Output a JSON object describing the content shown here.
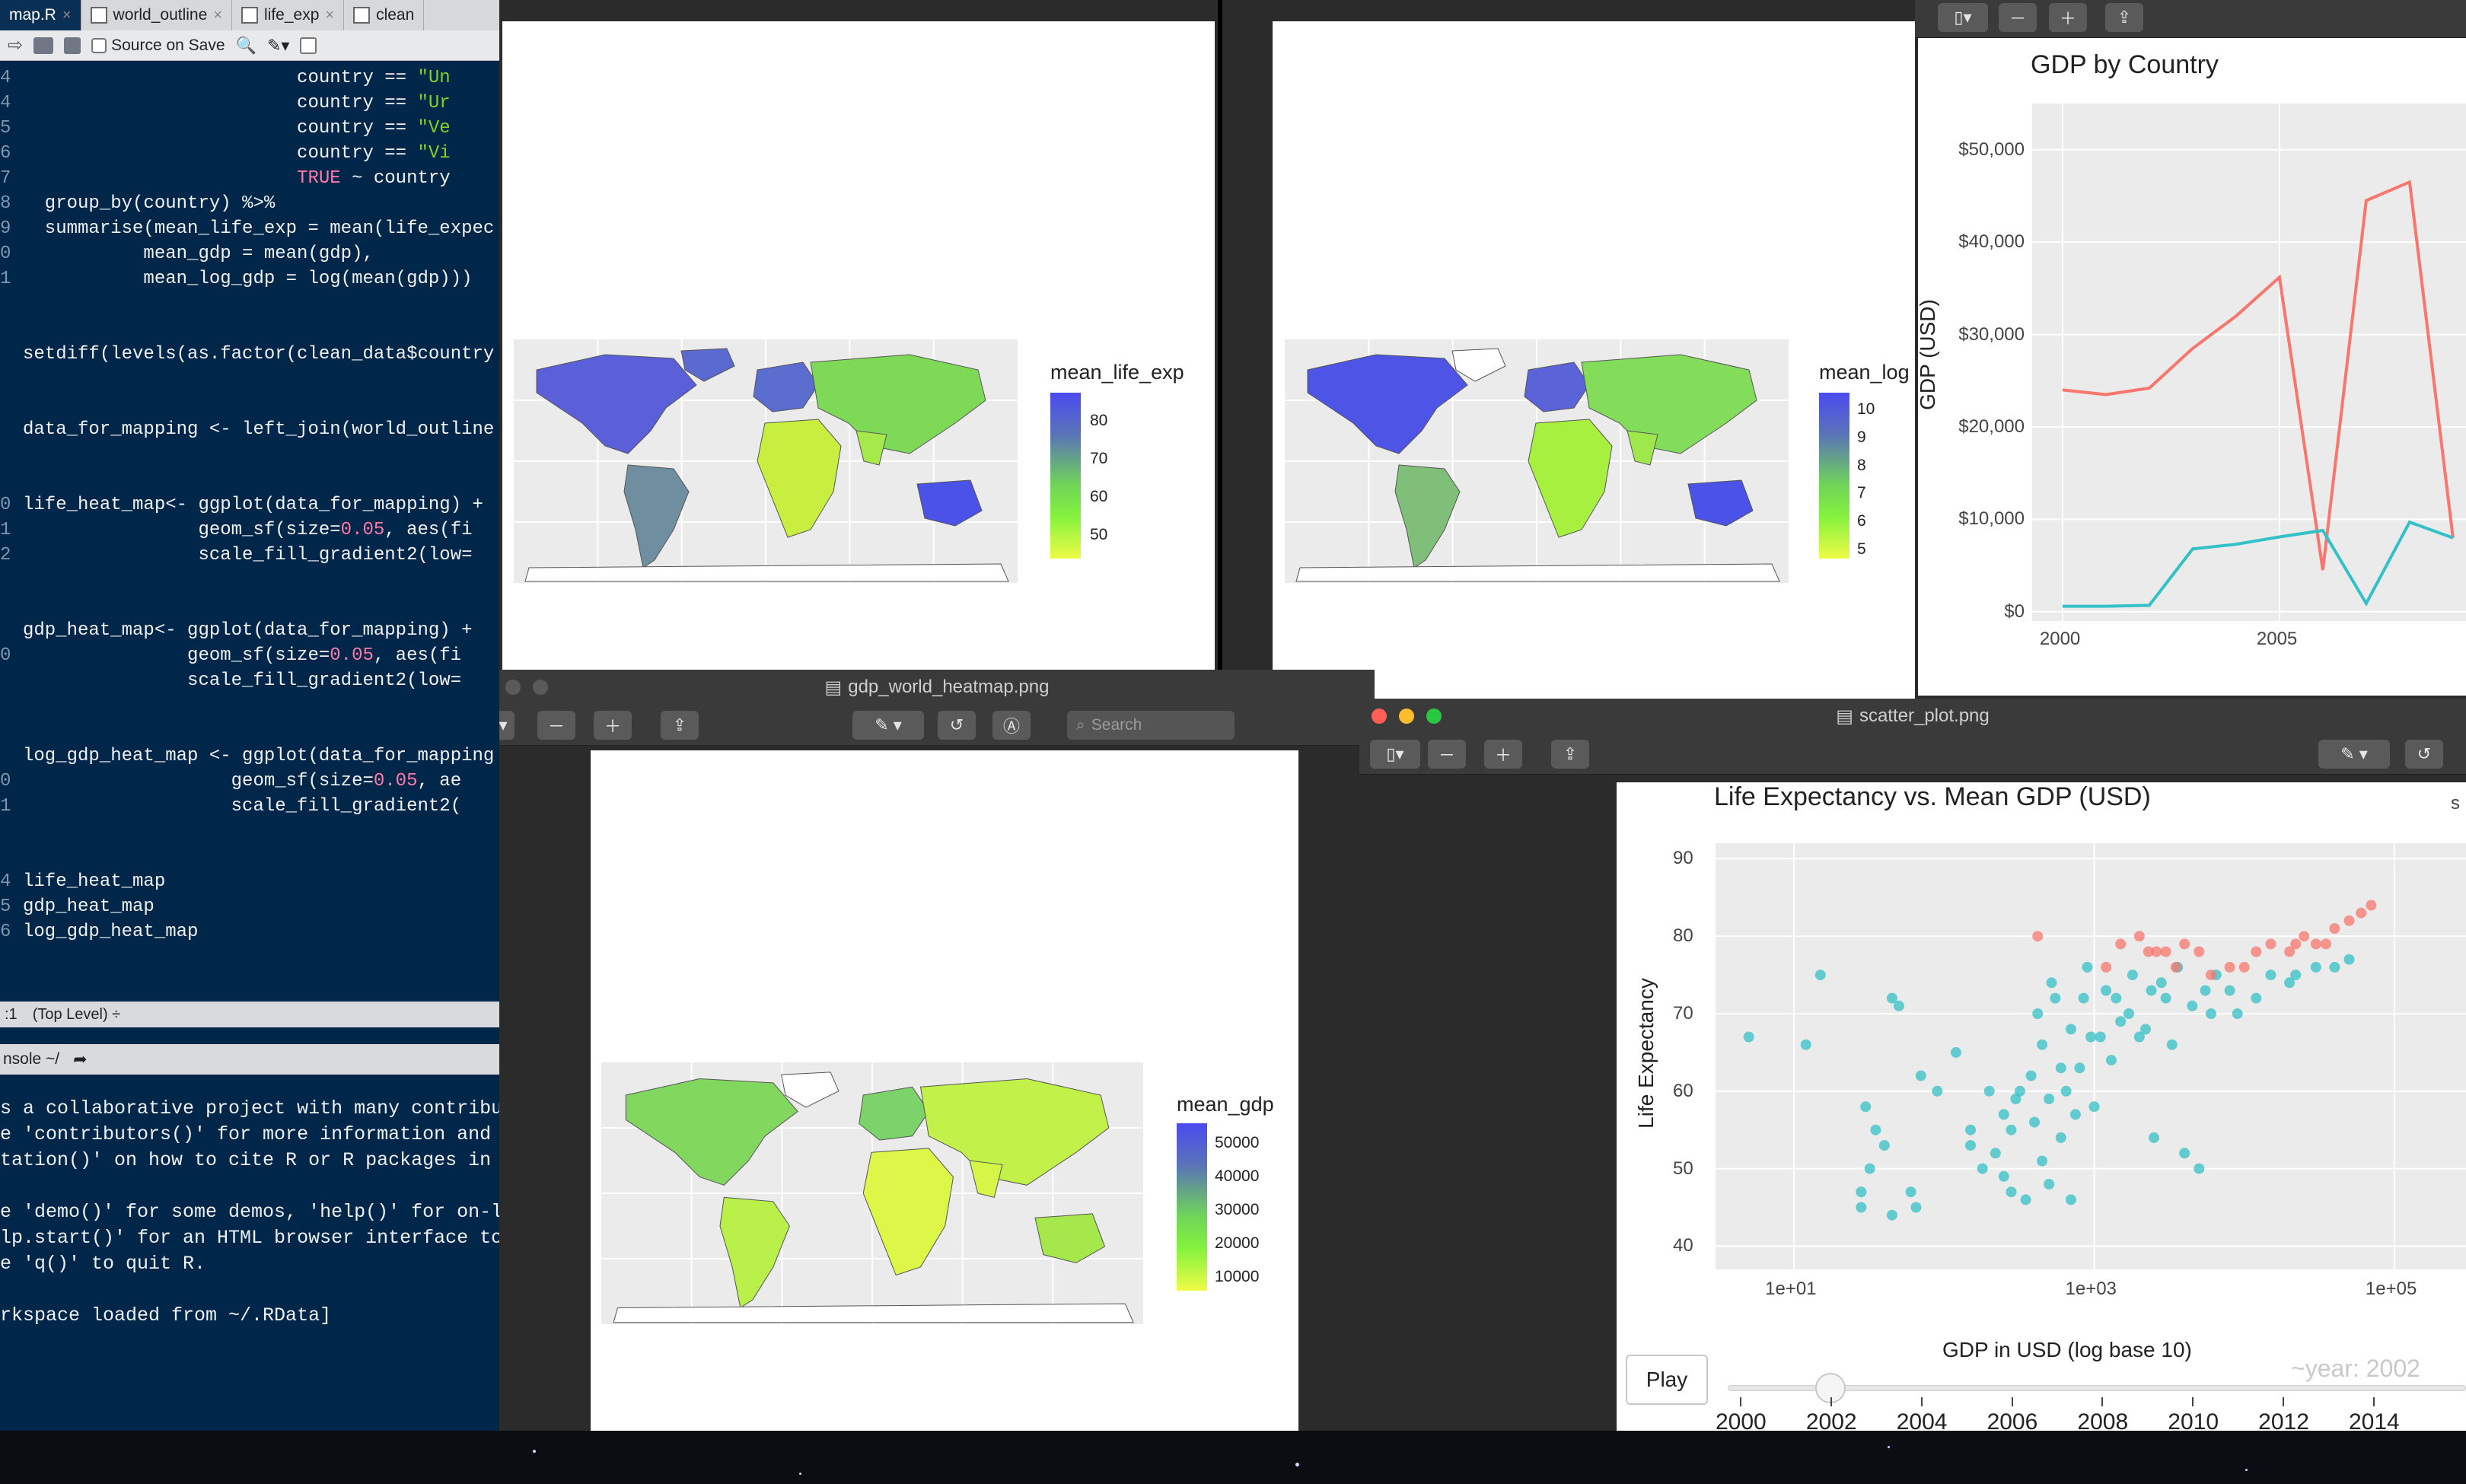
{
  "rstudio": {
    "tabs": [
      {
        "label": "map.R"
      },
      {
        "label": "world_outline"
      },
      {
        "label": "life_exp"
      },
      {
        "label": "clean"
      }
    ],
    "source_on_save": "Source on Save",
    "code_lines": [
      {
        "no": "4",
        "text": "                         country == \"Un"
      },
      {
        "no": "4",
        "text": "                         country == \"Ur"
      },
      {
        "no": "5",
        "text": "                         country == \"Ve"
      },
      {
        "no": "6",
        "text": "                         country == \"Vi"
      },
      {
        "no": "7",
        "text": "                         TRUE ~ country"
      },
      {
        "no": "8",
        "text": "  group_by(country) %>%"
      },
      {
        "no": "9",
        "text": "  summarise(mean_life_exp = mean(life_expec"
      },
      {
        "no": "0",
        "text": "           mean_gdp = mean(gdp),"
      },
      {
        "no": "1",
        "text": "           mean_log_gdp = log(mean(gdp)))"
      },
      {
        "no": "",
        "text": ""
      },
      {
        "no": "",
        "text": ""
      },
      {
        "no": "",
        "text": "setdiff(levels(as.factor(clean_data$country"
      },
      {
        "no": "",
        "text": ""
      },
      {
        "no": "",
        "text": ""
      },
      {
        "no": "",
        "text": "data_for_mapping <- left_join(world_outline"
      },
      {
        "no": "",
        "text": ""
      },
      {
        "no": "",
        "text": ""
      },
      {
        "no": "0",
        "text": "life_heat_map<- ggplot(data_for_mapping) +"
      },
      {
        "no": "1",
        "text": "                geom_sf(size=0.05, aes(fi"
      },
      {
        "no": "2",
        "text": "                scale_fill_gradient2(low="
      },
      {
        "no": "",
        "text": ""
      },
      {
        "no": "",
        "text": ""
      },
      {
        "no": "",
        "text": "gdp_heat_map<- ggplot(data_for_mapping) +"
      },
      {
        "no": "0",
        "text": "               geom_sf(size=0.05, aes(fi"
      },
      {
        "no": "",
        "text": "               scale_fill_gradient2(low="
      },
      {
        "no": "",
        "text": ""
      },
      {
        "no": "",
        "text": ""
      },
      {
        "no": "",
        "text": "log_gdp_heat_map <- ggplot(data_for_mapping"
      },
      {
        "no": "0",
        "text": "                   geom_sf(size=0.05, ae"
      },
      {
        "no": "1",
        "text": "                   scale_fill_gradient2("
      },
      {
        "no": "",
        "text": ""
      },
      {
        "no": "",
        "text": ""
      },
      {
        "no": "4",
        "text": "life_heat_map"
      },
      {
        "no": "5",
        "text": "gdp_heat_map"
      },
      {
        "no": "6",
        "text": "log_gdp_heat_map"
      }
    ],
    "status": {
      "pos": ":1",
      "scope": "(Top Level) ÷"
    },
    "console_title": "nsole ~/",
    "console_lines": [
      "s a collaborative project with many contributo",
      "e 'contributors()' for more information and",
      "tation()' on how to cite R or R packages in pu",
      "",
      "e 'demo()' for some demos, 'help()' for on-lin",
      "lp.start()' for an HTML browser interface to h",
      "e 'q()' to quit R.",
      "",
      "rkspace loaded from ~/.RData]"
    ]
  },
  "map_life": {
    "legend_title": "mean_life_exp",
    "ticks": [
      "80",
      "70",
      "60",
      "50"
    ]
  },
  "map_log": {
    "legend_title": "mean_log",
    "ticks": [
      "10",
      "9",
      "8",
      "7",
      "6",
      "5"
    ]
  },
  "map_gdp": {
    "window_title": "gdp_world_heatmap.png",
    "search_placeholder": "Search",
    "legend_title": "mean_gdp",
    "ticks": [
      "50000",
      "40000",
      "30000",
      "20000",
      "10000"
    ]
  },
  "gdp_chart": {
    "title": "GDP by Country",
    "ylabel": "GDP (USD)",
    "yticks": [
      "$50,000",
      "$40,000",
      "$30,000",
      "$20,000",
      "$10,000",
      "$0"
    ],
    "xticks": [
      "2000",
      "2005"
    ]
  },
  "scatter": {
    "window_title": "scatter_plot.png",
    "title": "Life Expectancy vs. Mean GDP (USD)",
    "xlabel": "GDP in USD (log base 10)",
    "ylabel": "Life Expectancy",
    "yticks": [
      "90",
      "80",
      "70",
      "60",
      "50",
      "40"
    ],
    "xticks": [
      "1e+01",
      "1e+03",
      "1e+05"
    ],
    "year_label": "~year: 2002",
    "play_label": "Play",
    "slider_years": [
      "2000",
      "2002",
      "2004",
      "2006",
      "2008",
      "2010",
      "2012",
      "2014"
    ],
    "slider_value": "2002",
    "legend_clip": "s"
  },
  "chart_data": [
    {
      "type": "line",
      "title": "GDP by Country",
      "ylabel": "GDP (USD)",
      "ylim": [
        -1000,
        55000
      ],
      "xlim": [
        1999.3,
        2009.3
      ],
      "series": [
        {
          "color": "#f8766d",
          "x": [
            2000,
            2001,
            2002,
            2003,
            2004,
            2005,
            2006,
            2007,
            2008,
            2009
          ],
          "values": [
            24000,
            23500,
            24200,
            28500,
            32000,
            36200,
            4500,
            44500,
            46500,
            8000
          ]
        },
        {
          "color": "#33c0c7",
          "x": [
            2000,
            2001,
            2002,
            2003,
            2004,
            2005,
            2006,
            2007,
            2008,
            2009
          ],
          "values": [
            600,
            600,
            700,
            6800,
            7300,
            8100,
            8800,
            900,
            9700,
            8000
          ]
        }
      ]
    },
    {
      "type": "scatter",
      "title": "Life Expectancy vs. Mean GDP (USD)",
      "xlabel": "GDP in USD (log base 10)",
      "ylabel": "Life Expectancy",
      "xscale": "log10",
      "xlim": [
        3,
        300000
      ],
      "ylim": [
        37,
        92
      ],
      "series": [
        {
          "color": "#33c0c7",
          "points": [
            [
              5,
              67
            ],
            [
              12,
              66
            ],
            [
              15,
              75
            ],
            [
              45,
              72
            ],
            [
              50,
              71
            ],
            [
              30,
              58
            ],
            [
              35,
              55
            ],
            [
              40,
              53
            ],
            [
              32,
              50
            ],
            [
              28,
              47
            ],
            [
              28,
              45
            ],
            [
              45,
              44
            ],
            [
              60,
              47
            ],
            [
              65,
              45
            ],
            [
              70,
              62
            ],
            [
              90,
              60
            ],
            [
              120,
              65
            ],
            [
              150,
              55
            ],
            [
              150,
              53
            ],
            [
              180,
              50
            ],
            [
              200,
              60
            ],
            [
              220,
              52
            ],
            [
              250,
              57
            ],
            [
              250,
              49
            ],
            [
              280,
              55
            ],
            [
              280,
              47
            ],
            [
              300,
              59
            ],
            [
              320,
              60
            ],
            [
              350,
              46
            ],
            [
              380,
              62
            ],
            [
              400,
              56
            ],
            [
              420,
              70
            ],
            [
              450,
              51
            ],
            [
              450,
              66
            ],
            [
              500,
              59
            ],
            [
              500,
              48
            ],
            [
              520,
              74
            ],
            [
              550,
              72
            ],
            [
              600,
              63
            ],
            [
              600,
              54
            ],
            [
              650,
              60
            ],
            [
              700,
              68
            ],
            [
              700,
              46
            ],
            [
              750,
              57
            ],
            [
              800,
              63
            ],
            [
              850,
              72
            ],
            [
              900,
              76
            ],
            [
              950,
              67
            ],
            [
              1000,
              58
            ],
            [
              1100,
              67
            ],
            [
              1200,
              73
            ],
            [
              1300,
              64
            ],
            [
              1400,
              72
            ],
            [
              1500,
              69
            ],
            [
              1700,
              70
            ],
            [
              1800,
              75
            ],
            [
              2000,
              67
            ],
            [
              2200,
              68
            ],
            [
              2400,
              73
            ],
            [
              2500,
              54
            ],
            [
              2800,
              74
            ],
            [
              3000,
              72
            ],
            [
              3300,
              66
            ],
            [
              3600,
              76
            ],
            [
              4000,
              52
            ],
            [
              4500,
              71
            ],
            [
              5000,
              50
            ],
            [
              5500,
              73
            ],
            [
              6000,
              70
            ],
            [
              6500,
              75
            ],
            [
              8000,
              73
            ],
            [
              9000,
              70
            ],
            [
              12000,
              72
            ],
            [
              15000,
              75
            ],
            [
              20000,
              74
            ],
            [
              22000,
              75
            ],
            [
              30000,
              76
            ],
            [
              40000,
              76
            ],
            [
              50000,
              77
            ]
          ]
        },
        {
          "color": "#f8766d",
          "points": [
            [
              420,
              80
            ],
            [
              1200,
              76
            ],
            [
              1500,
              79
            ],
            [
              2000,
              80
            ],
            [
              2300,
              78
            ],
            [
              2600,
              78
            ],
            [
              3000,
              78
            ],
            [
              3500,
              76
            ],
            [
              4000,
              79
            ],
            [
              5000,
              78
            ],
            [
              6000,
              75
            ],
            [
              8000,
              76
            ],
            [
              10000,
              76
            ],
            [
              12000,
              78
            ],
            [
              15000,
              79
            ],
            [
              20000,
              78
            ],
            [
              22000,
              79
            ],
            [
              25000,
              80
            ],
            [
              30000,
              79
            ],
            [
              35000,
              79
            ],
            [
              40000,
              81
            ],
            [
              50000,
              82
            ],
            [
              60000,
              83
            ],
            [
              70000,
              84
            ]
          ]
        }
      ]
    }
  ]
}
